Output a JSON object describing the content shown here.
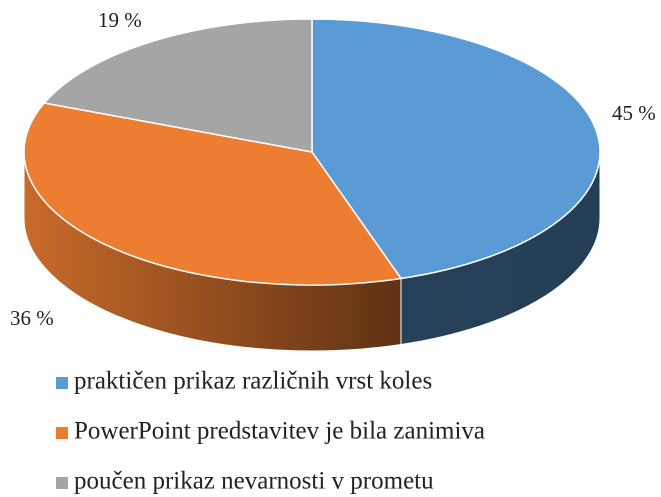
{
  "chart_data": {
    "type": "pie3d",
    "categories": [
      "praktičen prikaz različnih vrst koles",
      "PowerPoint predstavitev je bila zanimiva",
      "poučen prikaz nevarnosti v prometu"
    ],
    "values": [
      45,
      36,
      19
    ],
    "value_labels": [
      "45 %",
      "36 %",
      "19 %"
    ],
    "colors": [
      "#5b9bd5",
      "#ed7d31",
      "#a5a5a5"
    ],
    "legend": "bottom"
  }
}
